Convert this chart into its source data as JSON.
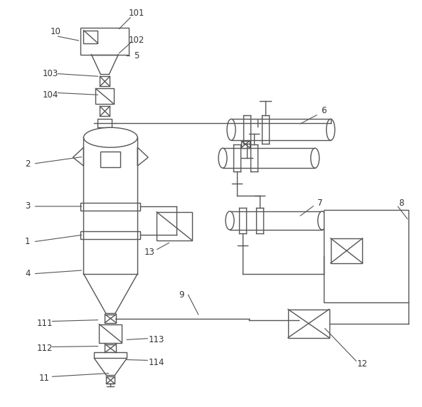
{
  "bg_color": "#ffffff",
  "line_color": "#555555",
  "label_color": "#333333",
  "lw": 1.0
}
